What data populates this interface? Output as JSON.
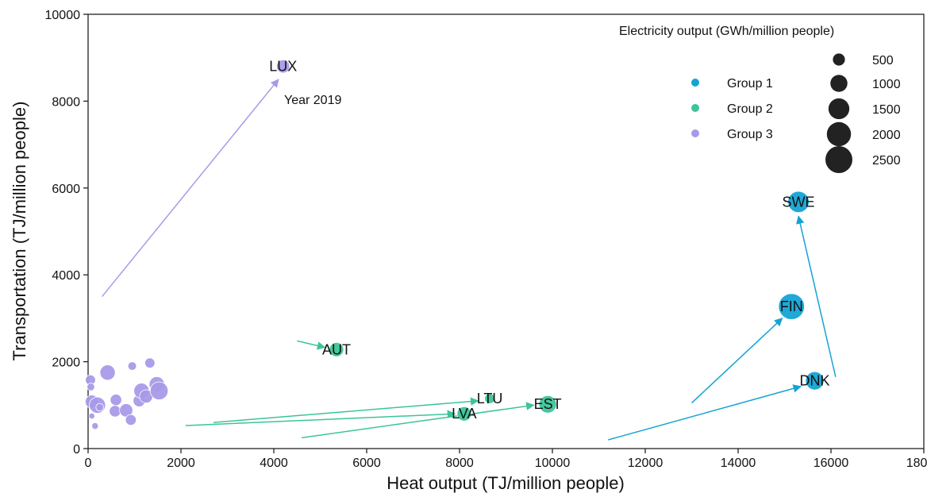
{
  "chart_data": {
    "type": "scatter",
    "xlabel": "Heat output (TJ/million people)",
    "ylabel": "Transportation (TJ/million people)",
    "xlim": [
      0,
      18000
    ],
    "ylim": [
      0,
      10000
    ],
    "xticks": [
      0,
      2000,
      4000,
      6000,
      8000,
      10000,
      12000,
      14000,
      16000,
      18000
    ],
    "yticks": [
      0,
      2000,
      4000,
      6000,
      8000,
      10000
    ],
    "annotation": "Year 2019",
    "size_legend": {
      "title": "Electricity output (GWh/million people)",
      "sizes": [
        500,
        1000,
        1500,
        2000,
        2500
      ]
    },
    "legend_position": "top-right",
    "series": [
      {
        "name": "Group 1",
        "color": "#14a3d4",
        "points": [
          {
            "label": "SWE",
            "x": 15300,
            "y": 5680,
            "size": 1550
          },
          {
            "label": "FIN",
            "x": 15150,
            "y": 3270,
            "size": 2300
          },
          {
            "label": "DNK",
            "x": 15650,
            "y": 1560,
            "size": 1150
          }
        ],
        "arrows": [
          {
            "from": [
              16100,
              1650
            ],
            "to": [
              15300,
              5350
            ]
          },
          {
            "from": [
              13000,
              1050
            ],
            "to": [
              14950,
              3000
            ]
          },
          {
            "from": [
              11200,
              200
            ],
            "to": [
              15350,
              1430
            ]
          }
        ]
      },
      {
        "name": "Group 2",
        "color": "#3cc49b",
        "points": [
          {
            "label": "AUT",
            "x": 5350,
            "y": 2280,
            "size": 700
          },
          {
            "label": "LTU",
            "x": 8650,
            "y": 1150,
            "size": 350
          },
          {
            "label": "LVA",
            "x": 8100,
            "y": 800,
            "size": 700
          },
          {
            "label": "EST",
            "x": 9900,
            "y": 1020,
            "size": 1050
          }
        ],
        "arrows": [
          {
            "from": [
              4500,
              2480
            ],
            "to": [
              5100,
              2330
            ]
          },
          {
            "from": [
              2700,
              600
            ],
            "to": [
              8400,
              1100
            ]
          },
          {
            "from": [
              2100,
              530
            ],
            "to": [
              7900,
              800
            ]
          },
          {
            "from": [
              4600,
              250
            ],
            "to": [
              9600,
              1000
            ]
          }
        ]
      },
      {
        "name": "Group 3",
        "color": "#a99ae8",
        "points": [
          {
            "label": "LUX",
            "x": 4200,
            "y": 8800,
            "size": 600
          },
          {
            "label": "",
            "x": 50,
            "y": 1580,
            "size": 350
          },
          {
            "label": "",
            "x": 60,
            "y": 1420,
            "size": 200
          },
          {
            "label": "",
            "x": 80,
            "y": 1080,
            "size": 600
          },
          {
            "label": "",
            "x": 200,
            "y": 1000,
            "size": 900
          },
          {
            "label": "",
            "x": 250,
            "y": 950,
            "size": 200
          },
          {
            "label": "",
            "x": 80,
            "y": 750,
            "size": 120
          },
          {
            "label": "",
            "x": 150,
            "y": 520,
            "size": 150
          },
          {
            "label": "",
            "x": 420,
            "y": 1750,
            "size": 800
          },
          {
            "label": "",
            "x": 600,
            "y": 1120,
            "size": 450
          },
          {
            "label": "",
            "x": 580,
            "y": 860,
            "size": 450
          },
          {
            "label": "",
            "x": 820,
            "y": 880,
            "size": 600
          },
          {
            "label": "",
            "x": 920,
            "y": 660,
            "size": 400
          },
          {
            "label": "",
            "x": 950,
            "y": 1900,
            "size": 250
          },
          {
            "label": "",
            "x": 1100,
            "y": 1100,
            "size": 500
          },
          {
            "label": "",
            "x": 1150,
            "y": 1330,
            "size": 800
          },
          {
            "label": "",
            "x": 1250,
            "y": 1200,
            "size": 600
          },
          {
            "label": "",
            "x": 1330,
            "y": 1970,
            "size": 350
          },
          {
            "label": "",
            "x": 1480,
            "y": 1480,
            "size": 800
          },
          {
            "label": "",
            "x": 1530,
            "y": 1330,
            "size": 1100
          }
        ],
        "arrows": [
          {
            "from": [
              300,
              3500
            ],
            "to": [
              4100,
              8500
            ]
          }
        ]
      }
    ]
  }
}
